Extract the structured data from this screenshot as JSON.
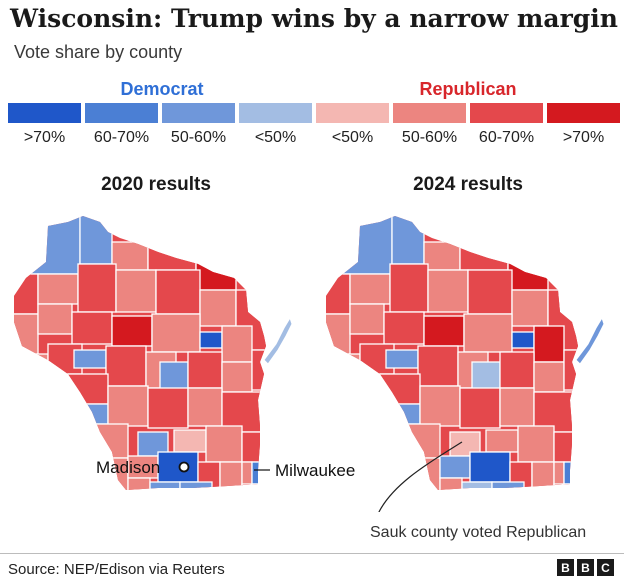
{
  "title": "Wisconsin: Trump wins by a narrow margin",
  "subtitle": "Vote share by county",
  "legend": {
    "democrat": {
      "label": "Democrat",
      "color": "#2f6fd6",
      "bins": [
        {
          "label": ">70%",
          "color": "#1f57c9"
        },
        {
          "label": "60-70%",
          "color": "#4b7fd4"
        },
        {
          "label": "50-60%",
          "color": "#6f97da"
        },
        {
          "label": "<50%",
          "color": "#a3bde3"
        }
      ]
    },
    "republican": {
      "label": "Republican",
      "color": "#d8262b",
      "bins": [
        {
          "label": "<50%",
          "color": "#f4b7b2"
        },
        {
          "label": "50-60%",
          "color": "#ec8580"
        },
        {
          "label": "60-70%",
          "color": "#e4484c"
        },
        {
          "label": ">70%",
          "color": "#d4191f"
        }
      ]
    }
  },
  "maps": [
    {
      "title": "2020 results"
    },
    {
      "title": "2024 results"
    }
  ],
  "callouts": {
    "madison": "Madison",
    "milwaukee": "Milwaukee",
    "sauk": "Sauk county voted Republican"
  },
  "source": "Source: NEP/Edison via Reuters",
  "brand": [
    "B",
    "B",
    "C"
  ]
}
